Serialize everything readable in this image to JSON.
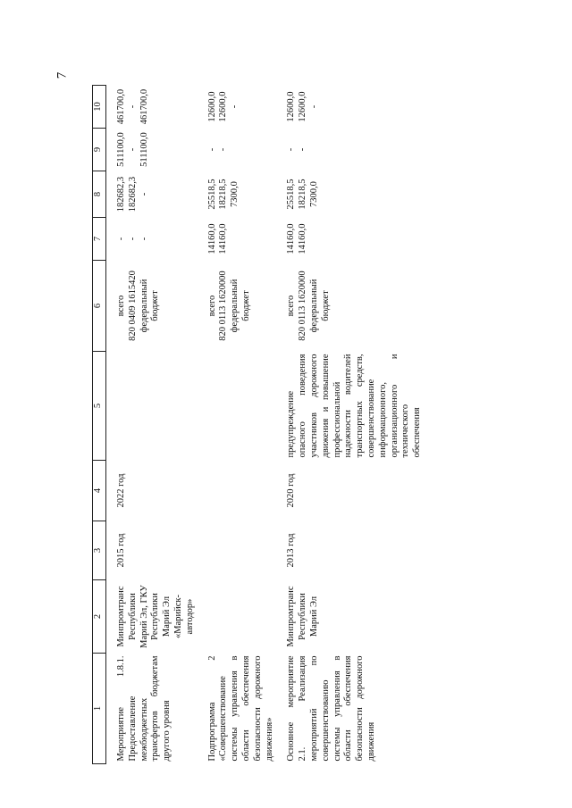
{
  "page_number": "7",
  "columns": [
    "1",
    "2",
    "3",
    "4",
    "5",
    "6",
    "7",
    "8",
    "9",
    "10"
  ],
  "rows": [
    {
      "c1": "Мероприятие 1.8.1. Предоставление межбюджетных трансфертов бюджетам другого уровня",
      "c2": "Минпромтранс Республики Марий Эл, ГКУ Республики Марий Эл «Марийск-автодор»",
      "c3": "2015 год",
      "c4": "2022 год",
      "c5": "",
      "c6": "всего\n820 0409 1615420\nфедеральный бюджет",
      "c7": "-\n-\n-",
      "c8": "182682,3\n182682,3\n-",
      "c9": "511100,0\n-\n511100,0",
      "c10": "461700,0\n-\n461700,0"
    },
    {
      "c1": "Подпрограмма 2 «Совершенствование системы управления в области обеспечения безопасности дорожного движения»",
      "c2": "",
      "c3": "",
      "c4": "",
      "c5": "",
      "c6": "всего\n820 0113 1620000\nфедеральный бюджет",
      "c7": "14160,0\n14160,0",
      "c8": "25518,5\n18218,5\n7300,0",
      "c9": "-\n-",
      "c10": "12600,0\n12600,0\n-"
    },
    {
      "c1": "Основное мероприятие 2.1. Реализация мероприятий по совершенствованию системы управления в области обеспечения безопасности дорожного движения",
      "c2": "Минпромтранс Республики Марий Эл",
      "c3": "2013 год",
      "c4": "2020 год",
      "c5": "предупреждение опасного поведения участников дорожного движения и повышение профессиональной надежности водителей транспортных средств, совершенствование информационного, организационного и технического обеспечения",
      "c6": "всего\n820 0113 1620000\nфедеральный бюджет",
      "c7": "14160,0\n14160,0",
      "c8": "25518,5\n18218,5\n7300,0",
      "c9": "-\n-",
      "c10": "12600,0\n12600,0\n-"
    }
  ]
}
